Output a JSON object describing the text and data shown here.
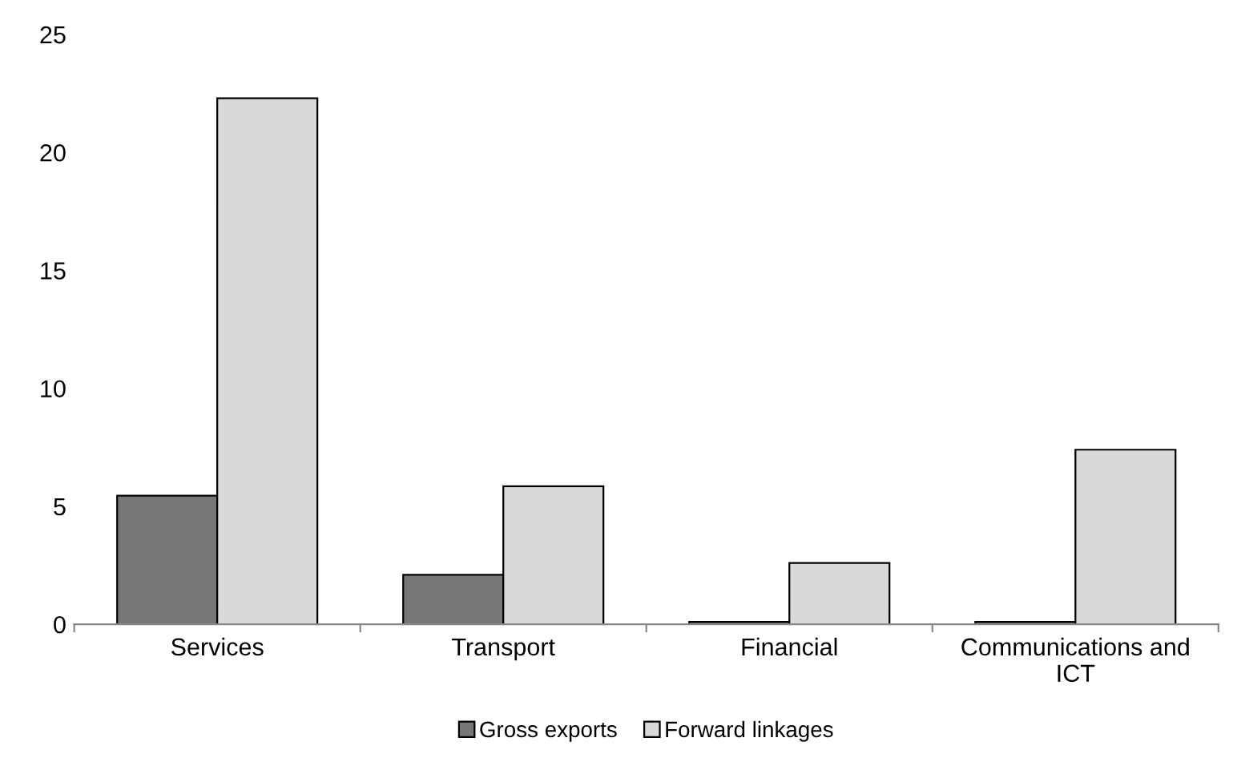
{
  "chart_data": {
    "type": "bar",
    "categories": [
      "Services",
      "Transport",
      "Financial",
      "Communications and\nICT"
    ],
    "series": [
      {
        "name": "Gross exports",
        "color": "#777777",
        "values": [
          5.45,
          2.1,
          0.1,
          0.1
        ]
      },
      {
        "name": "Forward linkages",
        "color": "#d9d9d9",
        "values": [
          22.3,
          5.85,
          2.6,
          7.4
        ]
      }
    ],
    "ylim": [
      0,
      25
    ],
    "yticks": [
      0,
      5,
      10,
      15,
      20,
      25
    ],
    "grid": false,
    "legend": "bottom"
  }
}
